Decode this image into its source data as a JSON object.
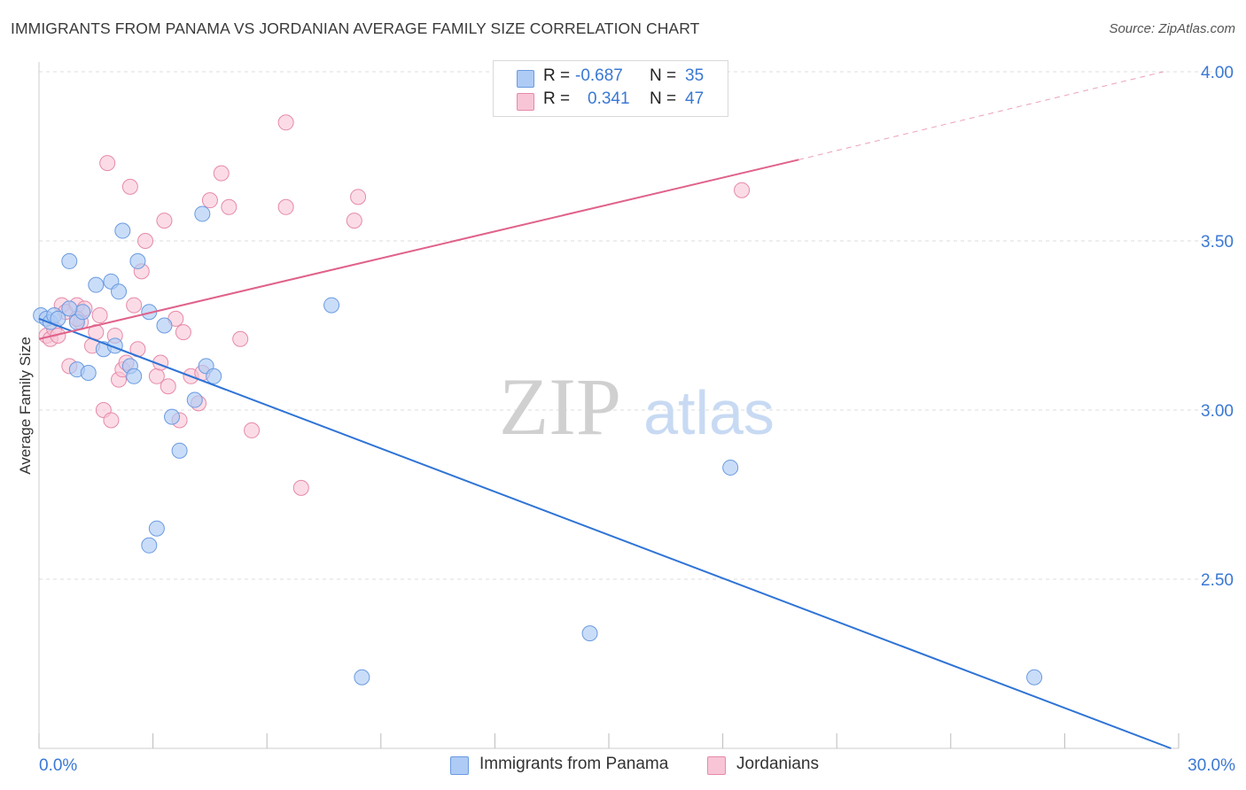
{
  "title": "IMMIGRANTS FROM PANAMA VS JORDANIAN AVERAGE FAMILY SIZE CORRELATION CHART",
  "source": "Source: ZipAtlas.com",
  "watermark": {
    "zip": "ZIP",
    "atlas": "atlas"
  },
  "legend_top": {
    "row1": {
      "r_label": "R =",
      "r_value": "-0.687",
      "n_label": "N =",
      "n_value": "35"
    },
    "row2": {
      "r_label": "R =",
      "r_value": "0.341",
      "n_label": "N =",
      "n_value": "47"
    }
  },
  "legend_bottom": {
    "series1": "Immigrants from Panama",
    "series2": "Jordanians"
  },
  "colors": {
    "blue_fill": "#aecbf5",
    "blue_stroke": "#6a9be0",
    "blue_line": "#2f74d6",
    "pink_fill": "#f8c5d6",
    "pink_stroke": "#e68aa9",
    "pink_line": "#e0628a",
    "value_text": "#3a78d4",
    "grid": "#dddddd"
  },
  "chart_data": {
    "type": "scatter",
    "xlabel": "",
    "ylabel": "Average Family Size",
    "x_tick_labels": [
      "0.0%",
      "30.0%"
    ],
    "y_tick_labels": [
      "2.50",
      "3.00",
      "3.50",
      "4.00"
    ],
    "xlim": [
      0,
      30
    ],
    "ylim": [
      2.0,
      4.05
    ],
    "grid": true,
    "series": [
      {
        "name": "Immigrants from Panama",
        "r": -0.687,
        "n": 35,
        "points": [
          [
            0.05,
            3.28
          ],
          [
            0.2,
            3.27
          ],
          [
            0.3,
            3.26
          ],
          [
            0.4,
            3.28
          ],
          [
            0.5,
            3.27
          ],
          [
            0.8,
            3.44
          ],
          [
            1.0,
            3.26
          ],
          [
            1.15,
            3.29
          ],
          [
            1.0,
            3.12
          ],
          [
            1.3,
            3.11
          ],
          [
            1.5,
            3.37
          ],
          [
            1.7,
            3.18
          ],
          [
            1.9,
            3.38
          ],
          [
            2.0,
            3.19
          ],
          [
            2.1,
            3.35
          ],
          [
            2.2,
            3.53
          ],
          [
            2.4,
            3.13
          ],
          [
            2.5,
            3.1
          ],
          [
            2.6,
            3.44
          ],
          [
            2.9,
            3.29
          ],
          [
            3.3,
            3.25
          ],
          [
            3.5,
            2.98
          ],
          [
            3.7,
            2.88
          ],
          [
            4.1,
            3.03
          ],
          [
            4.3,
            3.58
          ],
          [
            4.4,
            3.13
          ],
          [
            4.6,
            3.1
          ],
          [
            2.9,
            2.6
          ],
          [
            3.1,
            2.65
          ],
          [
            7.7,
            3.31
          ],
          [
            14.5,
            2.34
          ],
          [
            8.5,
            2.21
          ],
          [
            18.2,
            2.83
          ],
          [
            26.2,
            2.21
          ],
          [
            0.8,
            3.3
          ]
        ],
        "trend": {
          "x": [
            0.0,
            29.8
          ],
          "y": [
            3.27,
            2.0
          ]
        }
      },
      {
        "name": "Jordanians",
        "r": 0.341,
        "n": 47,
        "points": [
          [
            0.2,
            3.22
          ],
          [
            0.3,
            3.21
          ],
          [
            0.4,
            3.24
          ],
          [
            0.5,
            3.22
          ],
          [
            0.6,
            3.31
          ],
          [
            0.7,
            3.29
          ],
          [
            0.8,
            3.13
          ],
          [
            1.0,
            3.31
          ],
          [
            1.1,
            3.26
          ],
          [
            1.2,
            3.3
          ],
          [
            1.4,
            3.19
          ],
          [
            1.5,
            3.23
          ],
          [
            1.6,
            3.28
          ],
          [
            1.7,
            3.0
          ],
          [
            1.8,
            3.73
          ],
          [
            1.9,
            2.97
          ],
          [
            2.0,
            3.22
          ],
          [
            2.1,
            3.09
          ],
          [
            2.2,
            3.12
          ],
          [
            2.3,
            3.14
          ],
          [
            2.4,
            3.66
          ],
          [
            2.5,
            3.31
          ],
          [
            2.6,
            3.18
          ],
          [
            2.7,
            3.41
          ],
          [
            2.8,
            3.5
          ],
          [
            3.1,
            3.1
          ],
          [
            3.2,
            3.14
          ],
          [
            3.3,
            3.56
          ],
          [
            3.4,
            3.07
          ],
          [
            3.6,
            3.27
          ],
          [
            3.7,
            2.97
          ],
          [
            3.8,
            3.23
          ],
          [
            4.0,
            3.1
          ],
          [
            4.2,
            3.02
          ],
          [
            4.3,
            3.11
          ],
          [
            4.5,
            3.62
          ],
          [
            4.8,
            3.7
          ],
          [
            5.0,
            3.6
          ],
          [
            5.3,
            3.21
          ],
          [
            5.6,
            2.94
          ],
          [
            6.5,
            3.6
          ],
          [
            6.5,
            3.85
          ],
          [
            6.9,
            2.77
          ],
          [
            8.3,
            3.56
          ],
          [
            8.4,
            3.63
          ],
          [
            18.5,
            3.65
          ],
          [
            1.0,
            3.27
          ]
        ],
        "trend_solid": {
          "x": [
            0.0,
            20.0
          ],
          "y": [
            3.21,
            3.74
          ]
        },
        "trend_dashed": {
          "x": [
            20.0,
            29.6
          ],
          "y": [
            3.74,
            4.0
          ]
        }
      }
    ]
  }
}
